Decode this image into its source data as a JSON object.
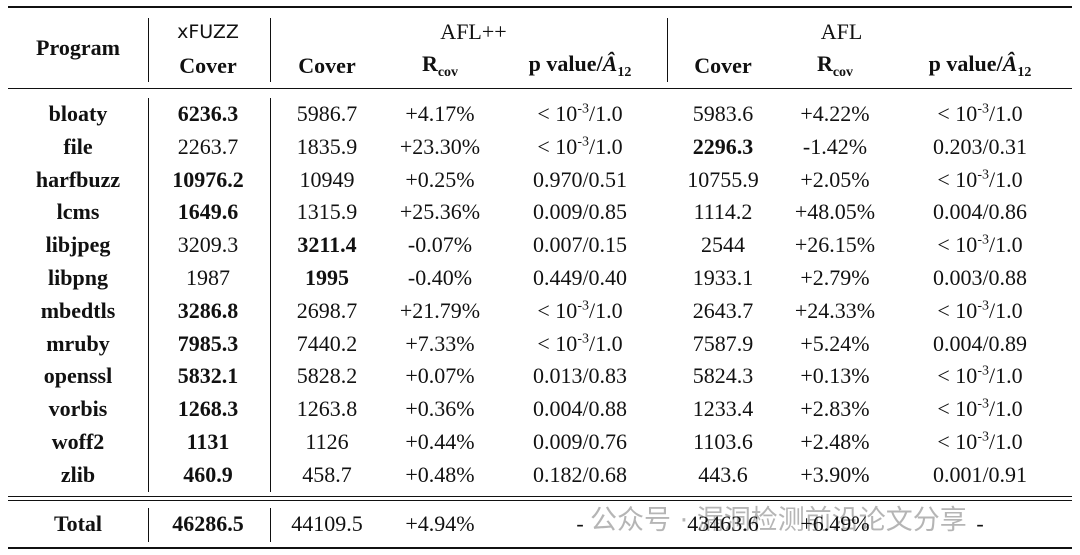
{
  "header": {
    "program": "Program",
    "groups": [
      "xFUZZ",
      "AFL++",
      "AFL"
    ],
    "columns": [
      "Cover",
      "Cover",
      {
        "main": "R",
        "sub": "cov"
      },
      {
        "main": "p value/",
        "hat": "Â",
        "sub": "12"
      },
      "Cover",
      {
        "main": "R",
        "sub": "cov"
      },
      {
        "main": "p value/",
        "hat": "Â",
        "sub": "12"
      }
    ]
  },
  "rows": [
    {
      "program": "bloaty",
      "cells": [
        {
          "text": "6236.3",
          "bold": true
        },
        "5986.7",
        "+4.17%",
        {
          "base": "< 10",
          "sup": "-3",
          "rest": "/1.0"
        },
        "5983.6",
        "+4.22%",
        {
          "base": "< 10",
          "sup": "-3",
          "rest": "/1.0"
        }
      ]
    },
    {
      "program": "file",
      "cells": [
        "2263.7",
        "1835.9",
        "+23.30%",
        {
          "base": "< 10",
          "sup": "-3",
          "rest": "/1.0"
        },
        {
          "text": "2296.3",
          "bold": true
        },
        "-1.42%",
        "0.203/0.31"
      ]
    },
    {
      "program": "harfbuzz",
      "cells": [
        {
          "text": "10976.2",
          "bold": true
        },
        "10949",
        "+0.25%",
        "0.970/0.51",
        "10755.9",
        "+2.05%",
        {
          "base": "< 10",
          "sup": "-3",
          "rest": "/1.0"
        }
      ]
    },
    {
      "program": "lcms",
      "cells": [
        {
          "text": "1649.6",
          "bold": true
        },
        "1315.9",
        "+25.36%",
        "0.009/0.85",
        "1114.2",
        "+48.05%",
        "0.004/0.86"
      ]
    },
    {
      "program": "libjpeg",
      "cells": [
        "3209.3",
        {
          "text": "3211.4",
          "bold": true
        },
        "-0.07%",
        "0.007/0.15",
        "2544",
        "+26.15%",
        {
          "base": "< 10",
          "sup": "-3",
          "rest": "/1.0"
        }
      ]
    },
    {
      "program": "libpng",
      "cells": [
        "1987",
        {
          "text": "1995",
          "bold": true
        },
        "-0.40%",
        "0.449/0.40",
        "1933.1",
        "+2.79%",
        "0.003/0.88"
      ]
    },
    {
      "program": "mbedtls",
      "cells": [
        {
          "text": "3286.8",
          "bold": true
        },
        "2698.7",
        "+21.79%",
        {
          "base": "< 10",
          "sup": "-3",
          "rest": "/1.0"
        },
        "2643.7",
        "+24.33%",
        {
          "base": "< 10",
          "sup": "-3",
          "rest": "/1.0"
        }
      ]
    },
    {
      "program": "mruby",
      "cells": [
        {
          "text": "7985.3",
          "bold": true
        },
        "7440.2",
        "+7.33%",
        {
          "base": "< 10",
          "sup": "-3",
          "rest": "/1.0"
        },
        "7587.9",
        "+5.24%",
        "0.004/0.89"
      ]
    },
    {
      "program": "openssl",
      "cells": [
        {
          "text": "5832.1",
          "bold": true
        },
        "5828.2",
        "+0.07%",
        "0.013/0.83",
        "5824.3",
        "+0.13%",
        {
          "base": "< 10",
          "sup": "-3",
          "rest": "/1.0"
        }
      ]
    },
    {
      "program": "vorbis",
      "cells": [
        {
          "text": "1268.3",
          "bold": true
        },
        "1263.8",
        "+0.36%",
        "0.004/0.88",
        "1233.4",
        "+2.83%",
        {
          "base": "< 10",
          "sup": "-3",
          "rest": "/1.0"
        }
      ]
    },
    {
      "program": "woff2",
      "cells": [
        {
          "text": "1131",
          "bold": true
        },
        "1126",
        "+0.44%",
        "0.009/0.76",
        "1103.6",
        "+2.48%",
        {
          "base": "< 10",
          "sup": "-3",
          "rest": "/1.0"
        }
      ]
    },
    {
      "program": "zlib",
      "cells": [
        {
          "text": "460.9",
          "bold": true
        },
        "458.7",
        "+0.48%",
        "0.182/0.68",
        "443.6",
        "+3.90%",
        "0.001/0.91"
      ]
    }
  ],
  "total": {
    "program": "Total",
    "cells": [
      {
        "text": "46286.5",
        "bold": true
      },
      "44109.5",
      "+4.94%",
      "-",
      "43463.6",
      "+6.49%",
      "-"
    ]
  },
  "watermark": "公众号 · 漏洞检测前沿论文分享"
}
